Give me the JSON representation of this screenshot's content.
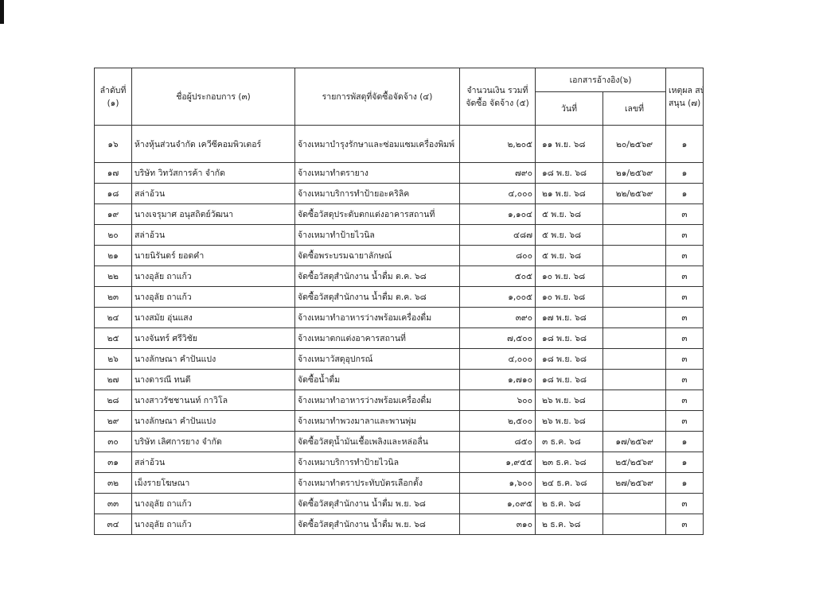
{
  "table": {
    "header": {
      "no": [
        "ลำดับที่",
        "(๑)"
      ],
      "name": "ชื่อผู้ประกอบการ (๓)",
      "item": "รายการพัสดุที่จัดซื้อจัดจ้าง (๔)",
      "amount": [
        "จำนวนเงิน รวมที่",
        "จัดซื้อ จัดจ้าง (๕)"
      ],
      "reference": "เอกสารอ้างอิง(๖)",
      "date": "วันที่",
      "ref": "เลขที่",
      "reason": [
        "เหตุผล สนับ",
        "สนุน (๗)"
      ]
    },
    "rows": [
      {
        "no": "๑๖",
        "name": "ห้างหุ้นส่วนจำกัด เควีซีคอมพิวเตอร์",
        "item": "จ้างเหมาบำรุงรักษาและซ่อมแซมเครื่องพิมพ์",
        "amount": "๒,๒๐๕",
        "date": "๑๑ พ.ย. ๖๘",
        "ref": "๒๐/๒๕๖๙",
        "reason": "๑"
      },
      {
        "no": "๑๗",
        "name": "บริษัท วิทวัสการค้า จำกัด",
        "item": "จ้างเหมาทำตรายาง",
        "amount": "๗๙๐",
        "date": "๑๘ พ.ย. ๖๘",
        "ref": "๒๑/๒๕๖๙",
        "reason": "๑"
      },
      {
        "no": "๑๘",
        "name": "สล่าอ้วน",
        "item": "จ้างเหมาบริการทำป้ายอะคริลิค",
        "amount": "๔,๐๐๐",
        "date": "๒๑ พ.ย. ๖๘",
        "ref": "๒๒/๒๕๖๙",
        "reason": "๑"
      },
      {
        "no": "๑๙",
        "name": "นางเจรุมาศ  อนุสถิตย์วัฒนา",
        "item": "จัดซื้อวัสดุประดับตกแต่งอาคารสถานที่",
        "amount": "๑,๑๐๔",
        "date": "๕ พ.ย. ๖๘",
        "reason": "๓"
      },
      {
        "no": "๒๐",
        "name": "สล่าอ้วน",
        "item": "จ้างเหมาทำป้ายไวนิล",
        "amount": "๔๘๗",
        "date": "๕ พ.ย. ๖๘",
        "reason": "๓"
      },
      {
        "no": "๒๑",
        "name": "นายนิรันดร์  ยอดคำ",
        "item": "จัดซื้อพระบรมฉายาลักษณ์",
        "amount": "๘๐๐",
        "date": "๕ พ.ย. ๖๘",
        "reason": "๓"
      },
      {
        "no": "๒๒",
        "name": "นางอุลัย  ถาแก้ว",
        "item": "จัดซื้อวัสดุสำนักงาน น้ำดื่ม ต.ค. ๖๘",
        "amount": "๕๐๕",
        "date": "๑๐ พ.ย. ๖๘",
        "reason": "๓"
      },
      {
        "no": "๒๓",
        "name": "นางอุลัย  ถาแก้ว",
        "item": "จัดซื้อวัสดุสำนักงาน น้ำดื่ม ต.ค. ๖๘",
        "amount": "๑,๐๐๕",
        "date": "๑๐ พ.ย. ๖๘",
        "reason": "๓"
      },
      {
        "no": "๒๔",
        "name": "นางสมัย  อุ่นแสง",
        "item": "จ้างเหมาทำอาหารว่างพร้อมเครื่องดื่ม",
        "amount": "๓๙๐",
        "date": "๑๗ พ.ย. ๖๘",
        "reason": "๓"
      },
      {
        "no": "๒๕",
        "name": "นางจันทร์  ศรีวิชัย",
        "item": "จ้างเหมาตกแต่งอาคารสถานที่",
        "amount": "๗,๕๐๐",
        "date": "๑๘ พ.ย. ๖๘",
        "reason": "๓"
      },
      {
        "no": "๒๖",
        "name": "นางลักษณา  คำปันแปง",
        "item": "จ้างเหมาวัสดุอุปกรณ์",
        "amount": "๔,๐๐๐",
        "date": "๑๘ พ.ย. ๖๘",
        "reason": "๓"
      },
      {
        "no": "๒๗",
        "name": "นางดารณี  ทนดี",
        "item": "จัดซื้อน้ำดื่ม",
        "amount": "๑,๗๑๐",
        "date": "๑๘ พ.ย. ๖๘",
        "reason": "๓"
      },
      {
        "no": "๒๘",
        "name": "นางสาวรัชชานนท์  กาวิโล",
        "item": "จ้างเหมาทำอาหารว่างพร้อมเครื่องดื่ม",
        "amount": "๖๐๐",
        "date": "๒๖ พ.ย. ๖๘",
        "reason": "๓"
      },
      {
        "no": "๒๙",
        "name": "นางลักษณา  คำปันแปง",
        "item": "จ้างเหมาทำพวงมาลาและพานพุ่ม",
        "amount": "๒,๕๐๐",
        "date": "๒๖ พ.ย. ๖๘",
        "reason": "๓"
      },
      {
        "no": "๓๐",
        "name": "บริษัท เลิศการยาง จำกัด",
        "item": "จัดซื้อวัสดุน้ำมันเชื้อเพลิงและหล่อลื่น",
        "amount": "๘๕๐",
        "date": "๓ ธ.ค. ๖๘",
        "ref": "๑๗/๒๕๖๙",
        "reason": "๑"
      },
      {
        "no": "๓๑",
        "name": "สล่าอ้วน",
        "item": "จ้างเหมาบริการทำป้ายไวนิล",
        "amount": "๑,๙๕๕",
        "date": "๒๓ ธ.ค. ๖๘",
        "ref": "๒๕/๒๕๖๙",
        "reason": "๑"
      },
      {
        "no": "๓๒",
        "name": "เม็งรายโฆษณา",
        "item": "จ้างเหมาทำตราประทับบัตรเลือกตั้ง",
        "amount": "๑,๖๐๐",
        "date": "๒๔ ธ.ค. ๖๘",
        "ref": "๒๗/๒๕๖๙",
        "reason": "๑"
      },
      {
        "no": "๓๓",
        "name": "นางอุลัย  ถาแก้ว",
        "item": "จัดซื้อวัสดุสำนักงาน น้ำดื่ม พ.ย. ๖๘",
        "amount": "๑,๐๙๕",
        "date": "๒ ธ.ค. ๖๘",
        "reason": "๓"
      },
      {
        "no": "๓๔",
        "name": "นางอุลัย  ถาแก้ว",
        "item": "จัดซื้อวัสดุสำนักงาน น้ำดื่ม พ.ย. ๖๘",
        "amount": "๓๑๐",
        "date": "๒ ธ.ค. ๖๘",
        "reason": "๓"
      }
    ]
  }
}
